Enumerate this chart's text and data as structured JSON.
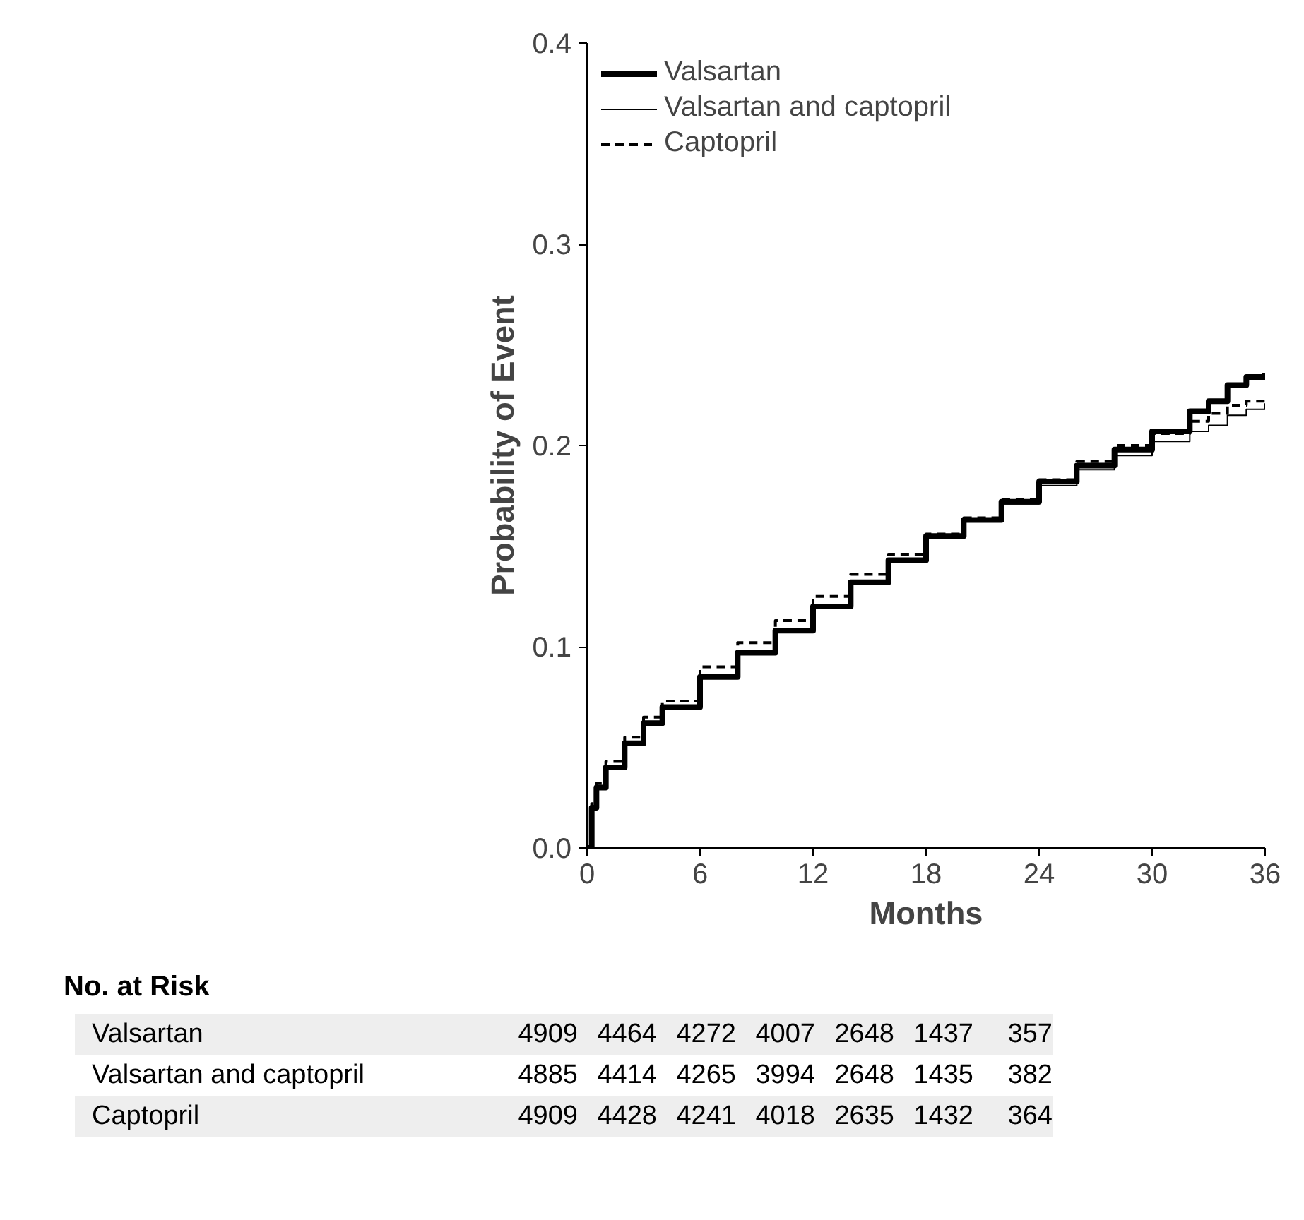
{
  "chart_data": {
    "type": "step",
    "xlabel": "Months",
    "ylabel": "Probability of Event",
    "xlim": [
      0,
      36
    ],
    "ylim": [
      0,
      0.4
    ],
    "xticks": [
      0,
      6,
      12,
      18,
      24,
      30,
      36
    ],
    "yticks": [
      {
        "value": 0,
        "label": "0.0"
      },
      0.1,
      0.2,
      0.3,
      0.4
    ],
    "grid": false,
    "legend": "top left",
    "series": [
      {
        "name": "Valsartan",
        "color": "#000000",
        "line_style": "solid",
        "x": [
          0,
          0.25,
          0.5,
          1,
          2,
          3,
          4,
          6,
          8,
          10,
          12,
          14,
          16,
          18,
          20,
          22,
          24,
          26,
          28,
          30,
          32,
          33,
          34,
          35,
          36
        ],
        "values": [
          0,
          0.02,
          0.03,
          0.04,
          0.052,
          0.062,
          0.07,
          0.085,
          0.097,
          0.108,
          0.12,
          0.132,
          0.143,
          0.155,
          0.163,
          0.172,
          0.182,
          0.19,
          0.198,
          0.207,
          0.217,
          0.222,
          0.23,
          0.234,
          0.236
        ]
      },
      {
        "name": "Valsartan and captopril",
        "color": "#000000",
        "line_style": "solid",
        "x": [
          0,
          0.25,
          0.5,
          1,
          2,
          3,
          4,
          6,
          8,
          10,
          12,
          14,
          16,
          18,
          20,
          22,
          24,
          26,
          28,
          30,
          32,
          33,
          34,
          35,
          36
        ],
        "values": [
          0,
          0.02,
          0.03,
          0.04,
          0.052,
          0.062,
          0.07,
          0.086,
          0.097,
          0.108,
          0.12,
          0.132,
          0.143,
          0.155,
          0.163,
          0.171,
          0.18,
          0.188,
          0.195,
          0.202,
          0.207,
          0.21,
          0.215,
          0.218,
          0.221
        ]
      },
      {
        "name": "Captopril",
        "color": "#000000",
        "line_style": "dashed",
        "x": [
          0,
          0.25,
          0.5,
          1,
          2,
          3,
          4,
          6,
          8,
          10,
          12,
          14,
          16,
          18,
          20,
          22,
          24,
          26,
          28,
          30,
          32,
          33,
          34,
          35,
          36
        ],
        "values": [
          0,
          0.022,
          0.032,
          0.043,
          0.055,
          0.065,
          0.073,
          0.09,
          0.102,
          0.113,
          0.125,
          0.136,
          0.146,
          0.156,
          0.164,
          0.173,
          0.183,
          0.192,
          0.2,
          0.206,
          0.212,
          0.216,
          0.22,
          0.222,
          0.223
        ]
      }
    ],
    "annotations": [
      "No. at Risk",
      "Valsartan",
      "4909",
      "4464",
      "4272",
      "4007",
      "2648",
      "1437",
      "357",
      "Valsartan and captopril",
      "4885",
      "4414",
      "4265",
      "3994",
      "2648",
      "1435",
      "382",
      "Captopril",
      "4909",
      "4428",
      "4241",
      "4018",
      "2635",
      "1432",
      "364"
    ]
  }
}
